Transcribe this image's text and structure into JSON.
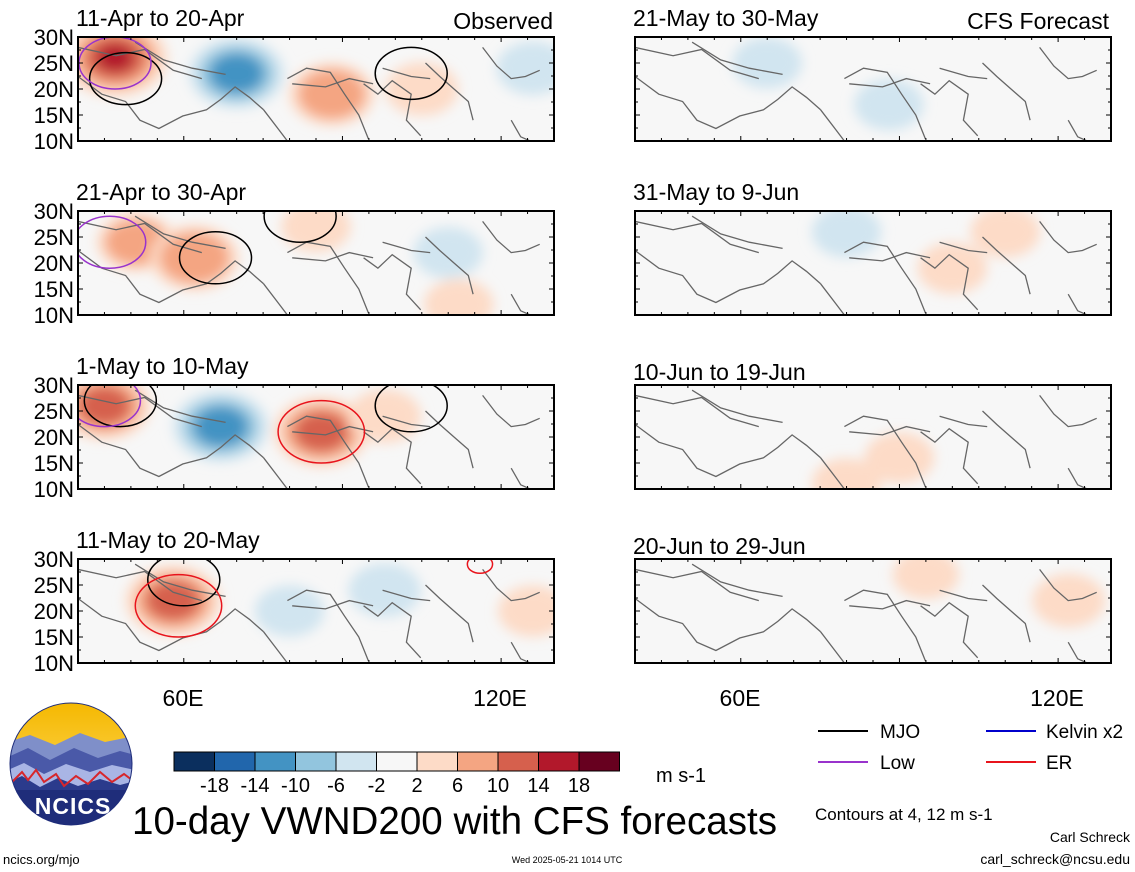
{
  "colors": {
    "neg": [
      "#0b2f5e",
      "#2166ac",
      "#4393c3",
      "#92c5de",
      "#d1e5f0"
    ],
    "neutral": "#f7f7f7",
    "pos": [
      "#fddbc7",
      "#f4a582",
      "#d6604d",
      "#b2182b",
      "#67001f"
    ],
    "mjo": "#000000",
    "kelvin": "#0000cc",
    "low": "#9933cc",
    "er": "#e8141c",
    "coast": "#666666"
  },
  "headers": {
    "observed": "Observed",
    "forecast": "CFS Forecast"
  },
  "panels": [
    {
      "title": "11-Apr to 20-Apr"
    },
    {
      "title": "21-May to 30-May"
    },
    {
      "title": "21-Apr to 30-Apr"
    },
    {
      "title": "31-May to 9-Jun"
    },
    {
      "title": "1-May to 10-May"
    },
    {
      "title": "10-Jun to 19-Jun"
    },
    {
      "title": "11-May to 20-May"
    },
    {
      "title": "20-Jun to 29-Jun"
    }
  ],
  "y_ticks": [
    "30N",
    "25N",
    "20N",
    "15N",
    "10N"
  ],
  "x_ticks": [
    "60E",
    "120E"
  ],
  "colorbar": {
    "labels": [
      "-18",
      "-14",
      "-10",
      "-6",
      "-2",
      "2",
      "6",
      "10",
      "14",
      "18"
    ],
    "units": "m s-1"
  },
  "legend": [
    {
      "label": "MJO",
      "icon": "line-black"
    },
    {
      "label": "Kelvin x2",
      "icon": "line-blue"
    },
    {
      "label": "Low",
      "icon": "line-purple"
    },
    {
      "label": "ER",
      "icon": "line-red"
    }
  ],
  "contour_note": "Contours at 4, 12 m s-1",
  "main_title": "10-day VWND200 with CFS forecasts",
  "logo_text": "NCICS",
  "url": "ncics.org/mjo",
  "timestamp": "Wed 2025-05-21 1014 UTC",
  "author": "Carl Schreck",
  "email": "carl_schreck@ncsu.edu",
  "chart_data": {
    "type": "heatmap",
    "title": "10-day VWND200 with CFS forecasts",
    "variable": "VWND200",
    "units": "m s-1",
    "x_ticks": [
      "60E",
      "120E"
    ],
    "y_ticks": [
      "30N",
      "25N",
      "20N",
      "15N",
      "10N"
    ],
    "lon_range": [
      40,
      130
    ],
    "lat_range": [
      10,
      30
    ],
    "color_levels": [
      -18,
      -14,
      -10,
      -6,
      -2,
      2,
      6,
      10,
      14,
      18
    ],
    "contour_levels": [
      4,
      12
    ],
    "panels": [
      {
        "period": "11-Apr to 20-Apr",
        "kind": "Observed",
        "blobs": [
          {
            "lon": 47,
            "lat": 26,
            "value": 14
          },
          {
            "lon": 70,
            "lat": 23,
            "value": -11
          },
          {
            "lon": 88,
            "lat": 19,
            "value": 8
          },
          {
            "lon": 105,
            "lat": 20,
            "value": 4
          },
          {
            "lon": 126,
            "lat": 24,
            "value": -4
          }
        ],
        "contours": [
          {
            "type": "MJO",
            "lon": 49,
            "lat": 22
          },
          {
            "type": "MJO",
            "lon": 103,
            "lat": 23
          },
          {
            "type": "Low",
            "lon": 47,
            "lat": 25
          }
        ]
      },
      {
        "period": "21-May to 30-May",
        "kind": "CFS Forecast",
        "blobs": [
          {
            "lon": 65,
            "lat": 25,
            "value": -3
          },
          {
            "lon": 88,
            "lat": 17,
            "value": -3
          }
        ],
        "contours": []
      },
      {
        "period": "21-Apr to 30-Apr",
        "kind": "Observed",
        "blobs": [
          {
            "lon": 51,
            "lat": 24,
            "value": 6
          },
          {
            "lon": 62,
            "lat": 21,
            "value": 9
          },
          {
            "lon": 85,
            "lat": 27,
            "value": 3
          },
          {
            "lon": 112,
            "lat": 12,
            "value": 3
          },
          {
            "lon": 110,
            "lat": 22,
            "value": -3
          }
        ],
        "contours": [
          {
            "type": "MJO",
            "lon": 66,
            "lat": 21
          },
          {
            "type": "MJO",
            "lon": 82,
            "lat": 29
          },
          {
            "type": "Low",
            "lon": 46,
            "lat": 24
          }
        ]
      },
      {
        "period": "31-May to 9-Jun",
        "kind": "CFS Forecast",
        "blobs": [
          {
            "lon": 80,
            "lat": 26,
            "value": -3
          },
          {
            "lon": 100,
            "lat": 19,
            "value": 3
          },
          {
            "lon": 110,
            "lat": 26,
            "value": 3
          }
        ],
        "contours": []
      },
      {
        "period": "1-May to 10-May",
        "kind": "Observed",
        "blobs": [
          {
            "lon": 45,
            "lat": 26,
            "value": 10
          },
          {
            "lon": 67,
            "lat": 22,
            "value": -11
          },
          {
            "lon": 86,
            "lat": 21,
            "value": 11
          },
          {
            "lon": 98,
            "lat": 24,
            "value": 4
          }
        ],
        "contours": [
          {
            "type": "MJO",
            "lon": 48,
            "lat": 27
          },
          {
            "type": "MJO",
            "lon": 103,
            "lat": 26
          },
          {
            "type": "Low",
            "lon": 45,
            "lat": 27
          },
          {
            "type": "ER",
            "lon": 86,
            "lat": 21
          }
        ]
      },
      {
        "period": "10-Jun to 19-Jun",
        "kind": "CFS Forecast",
        "blobs": [
          {
            "lon": 90,
            "lat": 16,
            "value": 3
          },
          {
            "lon": 80,
            "lat": 11,
            "value": 3
          }
        ],
        "contours": []
      },
      {
        "period": "11-May to 20-May",
        "kind": "Observed",
        "blobs": [
          {
            "lon": 58,
            "lat": 22,
            "value": 11
          },
          {
            "lon": 80,
            "lat": 20,
            "value": -3
          },
          {
            "lon": 98,
            "lat": 24,
            "value": -4
          },
          {
            "lon": 126,
            "lat": 20,
            "value": 3
          }
        ],
        "contours": [
          {
            "type": "MJO",
            "lon": 60,
            "lat": 26
          },
          {
            "type": "ER",
            "lon": 59,
            "lat": 21
          },
          {
            "type": "ER",
            "lon": 116,
            "lat": 29
          }
        ]
      },
      {
        "period": "20-Jun to 29-Jun",
        "kind": "CFS Forecast",
        "blobs": [
          {
            "lon": 122,
            "lat": 22,
            "value": 4
          },
          {
            "lon": 95,
            "lat": 27,
            "value": 2
          }
        ],
        "contours": []
      }
    ]
  }
}
